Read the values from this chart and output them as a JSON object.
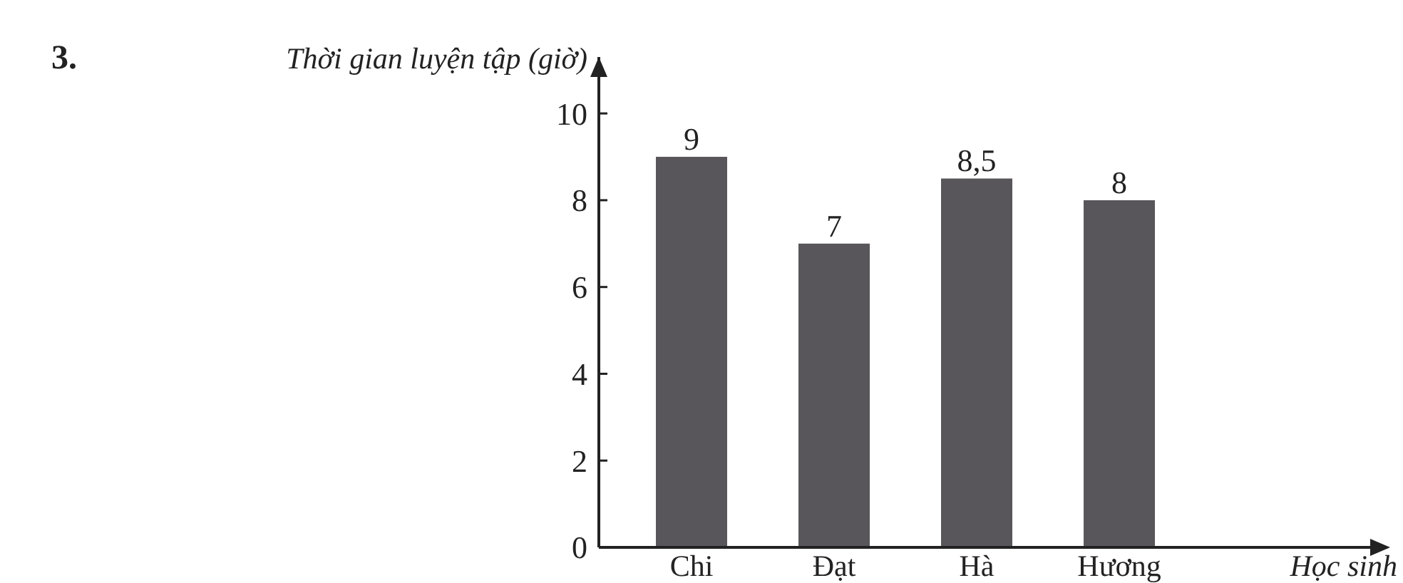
{
  "chart_data": {
    "type": "bar",
    "ylabel": "Thời gian luyện tập (giờ)",
    "xlabel": "Học sinh",
    "annotations": [
      "3."
    ],
    "categories": [
      "Chi",
      "Đạt",
      "Hà",
      "Hương"
    ],
    "values": [
      9,
      7,
      8.5,
      8
    ],
    "value_labels": [
      "9",
      "7",
      "8,5",
      "8"
    ],
    "color": "#58565a",
    "ylim": [
      0,
      11.3
    ],
    "yticks": [
      0,
      2,
      4,
      6,
      8,
      10
    ]
  }
}
